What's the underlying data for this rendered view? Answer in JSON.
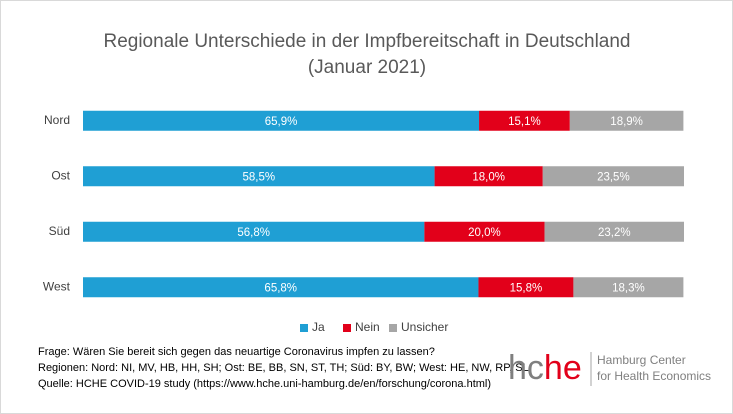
{
  "chart_data": {
    "type": "bar",
    "orientation": "horizontal",
    "stacked": true,
    "title": "Regionale Unterschiede in der Impfbereitschaft in Deutschland",
    "subtitle": "(Januar 2021)",
    "categories": [
      "Nord",
      "Ost",
      "Süd",
      "West"
    ],
    "xlim": [
      0,
      100
    ],
    "legend": "bottom",
    "series": [
      {
        "name": "Ja",
        "color": "#1f9fd4",
        "values": [
          65.9,
          58.5,
          56.8,
          65.8
        ],
        "value_labels": [
          "65,9%",
          "58,5%",
          "56,8%",
          "65,8%"
        ]
      },
      {
        "name": "Nein",
        "color": "#e2001a",
        "values": [
          15.1,
          18.0,
          20.0,
          15.8
        ],
        "value_labels": [
          "15,1%",
          "18,0%",
          "20,0%",
          "15,8%"
        ]
      },
      {
        "name": "Unsicher",
        "color": "#a6a6a6",
        "values": [
          18.9,
          23.5,
          23.2,
          18.3
        ],
        "value_labels": [
          "18,9%",
          "23,5%",
          "23,2%",
          "18,3%"
        ]
      }
    ]
  },
  "notes": [
    "Frage: Wären Sie bereit sich gegen das neuartige Coronavirus impfen zu lassen?",
    "Regionen: Nord: NI, MV, HB, HH, SH; Ost: BE, BB, SN, ST, TH; Süd: BY, BW; West: HE, NW, RP, SL",
    "Quelle: HCHE COVID-19 study (https://www.hche.uni-hamburg.de/en/forschung/corona.html)"
  ],
  "logo": {
    "part1": "hc",
    "part2": "he",
    "line1": "Hamburg Center",
    "line2": "for Health Economics"
  }
}
